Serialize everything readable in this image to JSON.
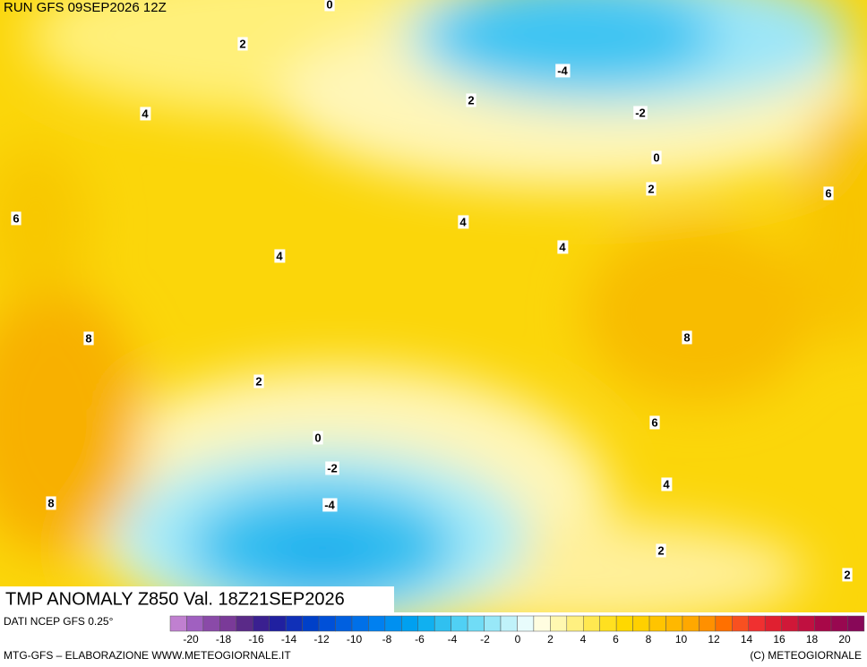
{
  "header": {
    "run": "RUN GFS 09SEP2026 12Z"
  },
  "map": {
    "contour_labels": [
      0,
      2,
      -4,
      4,
      2,
      -2,
      0,
      2,
      6,
      6,
      4,
      4,
      4,
      8,
      8,
      2,
      6,
      0,
      -2,
      -4,
      8,
      4,
      2,
      2
    ],
    "title": "TMP ANOMALY Z850 Val. 18Z21SEP2026"
  },
  "footer": {
    "source": "DATI NCEP GFS 0.25°",
    "credit_left": "MTG-GFS – ELABORAZIONE WWW.METEOGIORNALE.IT",
    "credit_right": "(C) METEOGIORNALE"
  },
  "colorbar": {
    "colors": [
      "#c080d0",
      "#a060c0",
      "#8a4aa8",
      "#7a3a98",
      "#5a2a88",
      "#3a2090",
      "#2020a0",
      "#1030b8",
      "#0040c8",
      "#0050d8",
      "#0060e0",
      "#0070e8",
      "#0080f0",
      "#0090f0",
      "#00a0f0",
      "#10b0f0",
      "#30c0f0",
      "#50d0f4",
      "#70dcf6",
      "#98e8f8",
      "#c0f2fa",
      "#e8fcfc",
      "#fffde0",
      "#fff8b0",
      "#fff080",
      "#ffe850",
      "#ffe020",
      "#ffd800",
      "#ffd000",
      "#ffc400",
      "#ffb800",
      "#ffa800",
      "#ff9000",
      "#ff7000",
      "#f85020",
      "#f03030",
      "#e02030",
      "#d01838",
      "#c01040",
      "#a80848",
      "#980850",
      "#880858"
    ],
    "ticks": [
      -20,
      -18,
      -16,
      -14,
      -12,
      -10,
      -8,
      -6,
      -4,
      -2,
      0,
      2,
      4,
      6,
      8,
      10,
      12,
      14,
      16,
      18,
      20
    ]
  }
}
